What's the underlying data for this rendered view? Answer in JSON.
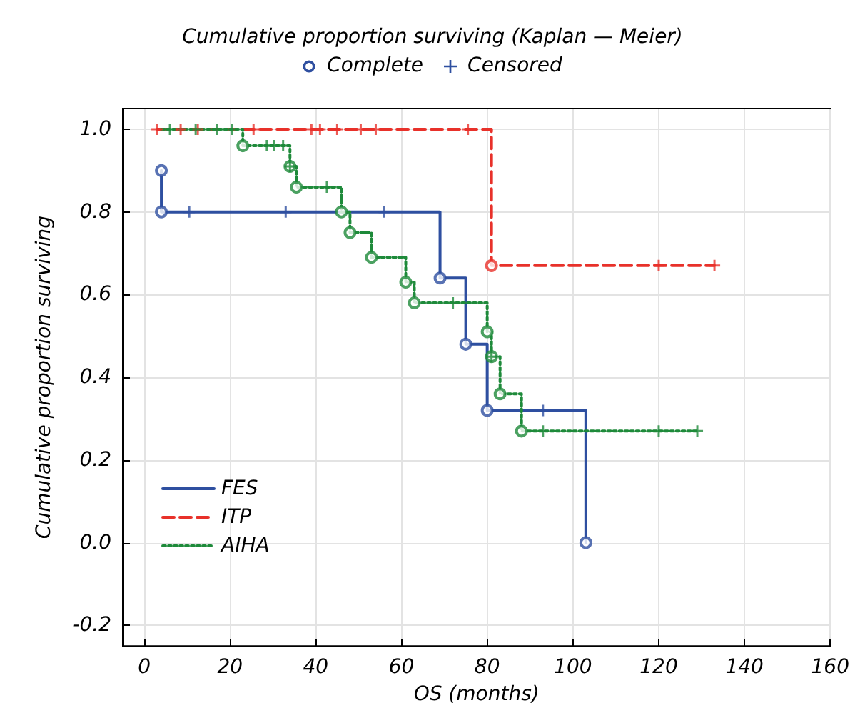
{
  "chart_data": {
    "type": "step",
    "title": "Cumulative proportion surviving (Kaplan — Meier)",
    "xlabel": "OS (months)",
    "ylabel": "Cumulative proportion surviving",
    "xlim": [
      -5,
      160
    ],
    "xticks": [
      0,
      20,
      40,
      60,
      80,
      100,
      120,
      140,
      160
    ],
    "ylim": [
      -0.25,
      1.05
    ],
    "yticks": [
      {
        "value": -0.2,
        "label": "-0.2"
      },
      {
        "value": 0,
        "label": "0.0"
      },
      0.2,
      0.4,
      0.6,
      0.8,
      {
        "value": 1,
        "label": "1.0"
      }
    ],
    "grid": true,
    "legend": "bottom left",
    "annotations": [
      "Complete",
      "Censored"
    ],
    "series": [
      {
        "name": "FES",
        "type": "step",
        "color": "#2e4fa0",
        "line_style": "solid",
        "marker": "none",
        "x": [
          4,
          4,
          69,
          75,
          80,
          103
        ],
        "values": [
          0.9,
          0.8,
          0.64,
          0.48,
          0.32,
          0
        ]
      },
      {
        "name": "ITP",
        "type": "step",
        "color": "#e8312a",
        "line_style": "dashed",
        "marker": "none",
        "x": [
          3,
          81,
          133
        ],
        "values": [
          1,
          0.67,
          0.67
        ]
      },
      {
        "name": "AIHA",
        "type": "step",
        "color": "#1e8a3a",
        "line_style": "dotted",
        "marker": "none",
        "x": [
          4,
          23,
          34,
          35.5,
          46,
          48,
          53,
          61,
          63,
          80,
          81,
          83,
          88,
          129
        ],
        "values": [
          1,
          0.96,
          0.91,
          0.86,
          0.8,
          0.75,
          0.69,
          0.63,
          0.58,
          0.51,
          0.45,
          0.36,
          0.27,
          0.27
        ]
      },
      {
        "type": "scatter",
        "color": "#2e4fa0",
        "marker": "circle",
        "x": [
          4,
          4,
          69,
          75,
          80,
          103
        ],
        "values": [
          0.9,
          0.8,
          0.64,
          0.48,
          0.32,
          0
        ]
      },
      {
        "type": "scatter",
        "color": "#2e4fa0",
        "marker": "cross",
        "x": [
          10.5,
          33,
          56,
          93
        ],
        "values": [
          0.8,
          0.8,
          0.8,
          0.32
        ]
      },
      {
        "type": "scatter",
        "color": "#e8312a",
        "marker": "circle",
        "x": [
          81
        ],
        "values": [
          0.67
        ]
      },
      {
        "type": "scatter",
        "color": "#e8312a",
        "marker": "cross",
        "x": [
          3,
          8.5,
          12.5,
          25.5,
          28,
          39,
          41,
          45,
          50.5,
          54,
          75.5,
          120,
          133
        ],
        "values": [
          1,
          1,
          1,
          1,
          null,
          1,
          1,
          1,
          1,
          1,
          1,
          0.67,
          0.67
        ]
      },
      {
        "type": "scatter",
        "color": "#1e8a3a",
        "marker": "circle",
        "x": [
          23,
          34,
          35.5,
          46,
          48,
          53,
          61,
          63,
          80,
          81,
          83,
          88
        ],
        "values": [
          0.96,
          0.91,
          0.86,
          0.8,
          0.75,
          0.69,
          0.63,
          0.58,
          0.51,
          0.45,
          0.36,
          0.27
        ]
      },
      {
        "type": "scatter",
        "color": "#1e8a3a",
        "marker": "cross",
        "x": [
          6,
          12,
          17,
          20.5,
          28.6,
          30.3,
          32.4,
          34,
          42.6,
          72,
          81,
          93,
          120,
          129
        ],
        "values": [
          1,
          1,
          1,
          1,
          0.96,
          0.96,
          0.96,
          0.91,
          0.86,
          0.58,
          0.45,
          0.27,
          0.27,
          0.27
        ]
      }
    ]
  }
}
